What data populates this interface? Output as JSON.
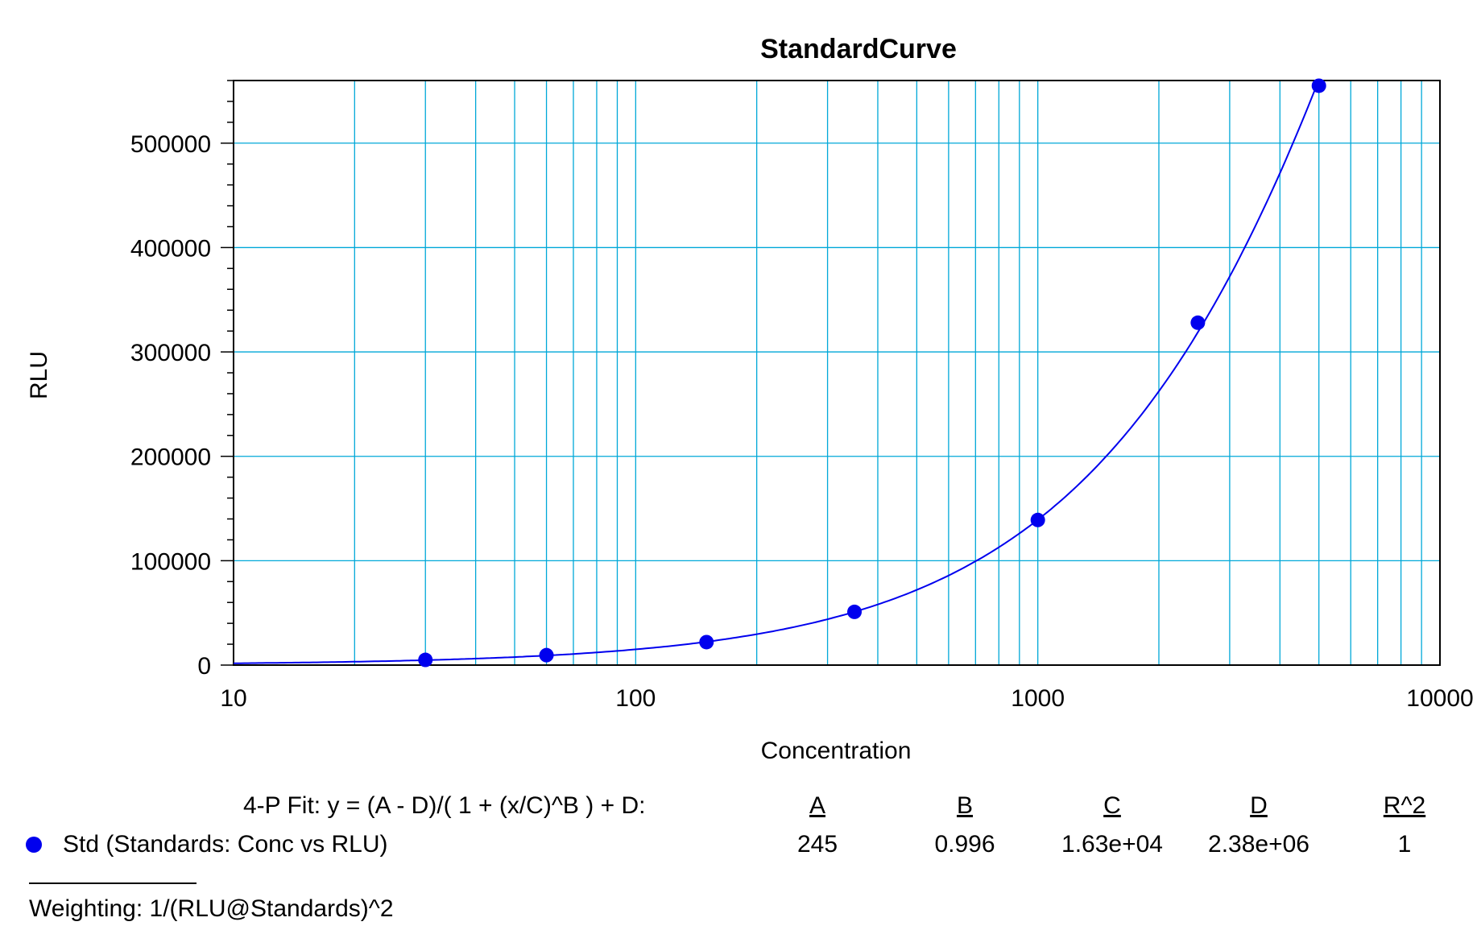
{
  "chart_data": {
    "type": "scatter",
    "title": "StandardCurve",
    "xlabel": "Concentration",
    "ylabel": "RLU",
    "x_scale": "log",
    "xlim": [
      10,
      10000
    ],
    "ylim": [
      0,
      560000
    ],
    "x_ticks": [
      "10",
      "100",
      "1000",
      "10000"
    ],
    "y_ticks": [
      "0",
      "100000",
      "200000",
      "300000",
      "400000",
      "500000"
    ],
    "grid": true,
    "series": [
      {
        "name": "Std (Standards: Conc vs RLU)",
        "color": "#0000ee",
        "points": [
          {
            "x": 30,
            "y": 5000
          },
          {
            "x": 60,
            "y": 9500
          },
          {
            "x": 150,
            "y": 22000
          },
          {
            "x": 350,
            "y": 51000
          },
          {
            "x": 1000,
            "y": 139000
          },
          {
            "x": 2500,
            "y": 328000
          },
          {
            "x": 5000,
            "y": 555000
          }
        ]
      }
    ],
    "fit": {
      "label": "4-P Fit:  y = (A - D)/( 1 + (x/C)^B ) + D:",
      "headers": [
        "A",
        "B",
        "C",
        "D",
        "R^2"
      ],
      "values": [
        "245",
        "0.996",
        "1.63e+04",
        "2.38e+06",
        "1"
      ],
      "A": 245,
      "B": 0.996,
      "C": 16300,
      "D": 2380000
    },
    "weighting": "Weighting: 1/(RLU@Standards)^2"
  },
  "colors": {
    "grid": "#00a8d8",
    "series": "#0000ee",
    "axis": "#000000"
  }
}
